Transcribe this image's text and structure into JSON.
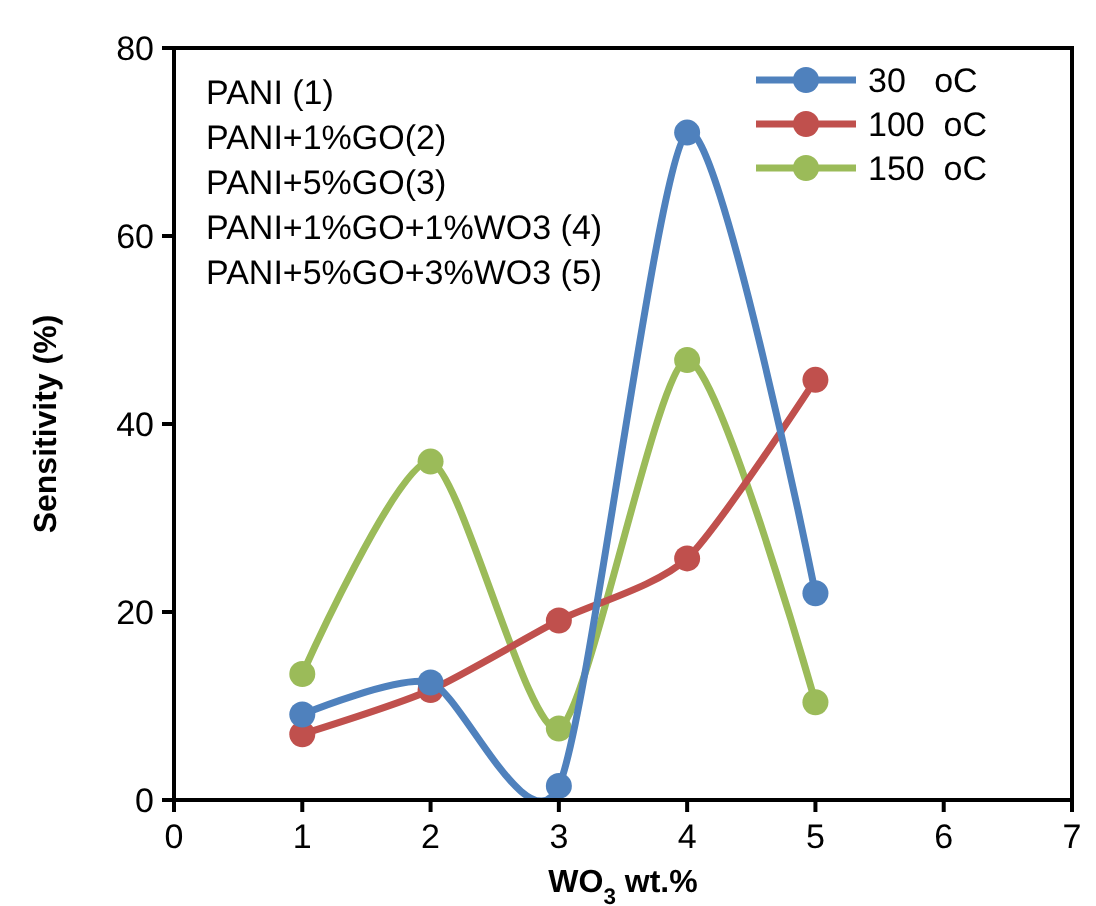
{
  "chart_data": {
    "type": "line",
    "xlabel": "WO$_{3}$ wt.%",
    "ylabel": "Sensitivity (%)",
    "x": [
      1,
      2,
      3,
      4,
      5
    ],
    "series": [
      {
        "name": "30   oC",
        "color": "#4f81bd",
        "values": [
          9.1,
          12.5,
          1.5,
          71,
          22
        ]
      },
      {
        "name": "100  oC",
        "color": "#c0504d",
        "values": [
          7,
          11.7,
          19.1,
          25.7,
          44.7
        ]
      },
      {
        "name": "150  oC",
        "color": "#9bbb59",
        "values": [
          13.4,
          36,
          7.6,
          46.8,
          10.4
        ]
      }
    ],
    "xlim": [
      0,
      7
    ],
    "xticks": [
      0,
      1,
      2,
      3,
      4,
      5,
      6,
      7
    ],
    "ylim": [
      0,
      80
    ],
    "yticks": [
      0,
      20,
      40,
      60,
      80
    ],
    "grid": false,
    "legend": "top right",
    "marker": "circle",
    "line_style": "solid",
    "annotations": [
      "PANI (1)",
      "PANI+1%GO(2)",
      "PANI+5%GO(3)",
      "PANI+1%GO+1%WO3 (4)",
      "PANI+5%GO+3%WO3 (5)"
    ]
  }
}
